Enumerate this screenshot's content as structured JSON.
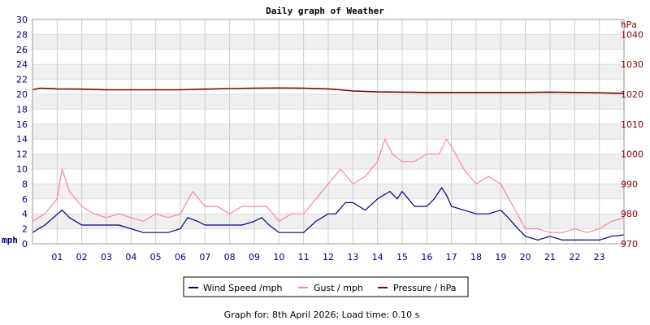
{
  "chart_data": {
    "type": "line",
    "title": "Daily graph of Weather",
    "left_axis": {
      "label": "mph",
      "ylim": [
        0,
        30
      ],
      "ticks": [
        0,
        2,
        4,
        6,
        8,
        10,
        12,
        14,
        16,
        18,
        20,
        22,
        24,
        26,
        28,
        30
      ],
      "color": "#000080"
    },
    "right_axis": {
      "label": "hPa",
      "ylim": [
        970,
        1045
      ],
      "ticks": [
        970,
        980,
        990,
        1000,
        1010,
        1020,
        1030,
        1040
      ],
      "color": "#800000"
    },
    "x_axis": {
      "range": [
        0,
        24
      ],
      "tick_labels": [
        "01",
        "02",
        "03",
        "04",
        "05",
        "06",
        "07",
        "08",
        "09",
        "10",
        "11",
        "12",
        "13",
        "14",
        "15",
        "16",
        "17",
        "18",
        "19",
        "20",
        "21",
        "22",
        "23"
      ]
    },
    "grid": true,
    "legend_position": "bottom",
    "series": [
      {
        "name": "Wind Speed /mph",
        "axis": "left",
        "color": "#000080",
        "x": [
          0,
          0.5,
          1.2,
          1.5,
          2,
          2.5,
          3,
          3.5,
          4,
          4.5,
          5,
          5.5,
          6,
          6.3,
          6.7,
          7,
          7.5,
          8,
          8.5,
          9,
          9.3,
          9.6,
          10,
          10.5,
          11,
          11.5,
          12,
          12.3,
          12.7,
          13,
          13.5,
          14,
          14.5,
          14.8,
          15,
          15.5,
          16,
          16.3,
          16.6,
          16.8,
          17,
          17.5,
          18,
          18.5,
          19,
          19.3,
          19.7,
          20,
          20.5,
          21,
          21.5,
          22,
          22.5,
          23,
          23.5,
          24
        ],
        "values": [
          1.5,
          2.5,
          4.5,
          3.5,
          2.5,
          2.5,
          2.5,
          2.5,
          2,
          1.5,
          1.5,
          1.5,
          2,
          3.5,
          3,
          2.5,
          2.5,
          2.5,
          2.5,
          3,
          3.5,
          2.5,
          1.5,
          1.5,
          1.5,
          3,
          4,
          4,
          5.5,
          5.5,
          4.5,
          6,
          7,
          6,
          7,
          5,
          5,
          6,
          7.5,
          6.5,
          5,
          4.5,
          4,
          4,
          4.5,
          3.5,
          2,
          1,
          0.5,
          1,
          0.5,
          0.5,
          0.5,
          0.5,
          1,
          1.2
        ]
      },
      {
        "name": "Gust / mph",
        "axis": "left",
        "color": "#ff80b0",
        "x": [
          0,
          0.5,
          1,
          1.2,
          1.5,
          2,
          2.5,
          3,
          3.5,
          4,
          4.5,
          5,
          5.5,
          6,
          6.5,
          7,
          7.5,
          8,
          8.5,
          9,
          9.5,
          10,
          10.5,
          11,
          11.5,
          12,
          12.5,
          13,
          13.5,
          14,
          14.3,
          14.6,
          15,
          15.5,
          16,
          16.5,
          16.8,
          17,
          17.5,
          18,
          18.5,
          19,
          19.5,
          20,
          20.5,
          21,
          21.5,
          22,
          22.5,
          23,
          23.5,
          24
        ],
        "values": [
          3,
          4,
          6,
          10,
          7,
          5,
          4,
          3.5,
          4,
          3.5,
          3,
          4,
          3.5,
          4,
          7,
          5,
          5,
          4,
          5,
          5,
          5,
          3,
          4,
          4,
          6,
          8,
          10,
          8,
          9,
          11,
          14,
          12,
          11,
          11,
          12,
          12,
          14,
          13,
          10,
          8,
          9,
          8,
          5,
          2,
          2,
          1.5,
          1.5,
          2,
          1.5,
          2,
          3,
          3.5
        ]
      },
      {
        "name": "Pressure / hPa",
        "axis": "right",
        "color": "#800000",
        "x": [
          0,
          0.3,
          1,
          2,
          3,
          4,
          5,
          6,
          7,
          8,
          9,
          10,
          11,
          12,
          12.5,
          13,
          14,
          15,
          16,
          17,
          18,
          19,
          20,
          21,
          22,
          23,
          24
        ],
        "values": [
          1021.5,
          1022,
          1021.8,
          1021.7,
          1021.5,
          1021.5,
          1021.5,
          1021.5,
          1021.7,
          1021.9,
          1022,
          1022.1,
          1022,
          1021.8,
          1021.5,
          1021.1,
          1020.8,
          1020.7,
          1020.6,
          1020.6,
          1020.6,
          1020.6,
          1020.6,
          1020.7,
          1020.6,
          1020.5,
          1020.3
        ]
      }
    ]
  },
  "footer": {
    "text": "Graph for: 8th April 2026; Load time: 0.10 s"
  }
}
